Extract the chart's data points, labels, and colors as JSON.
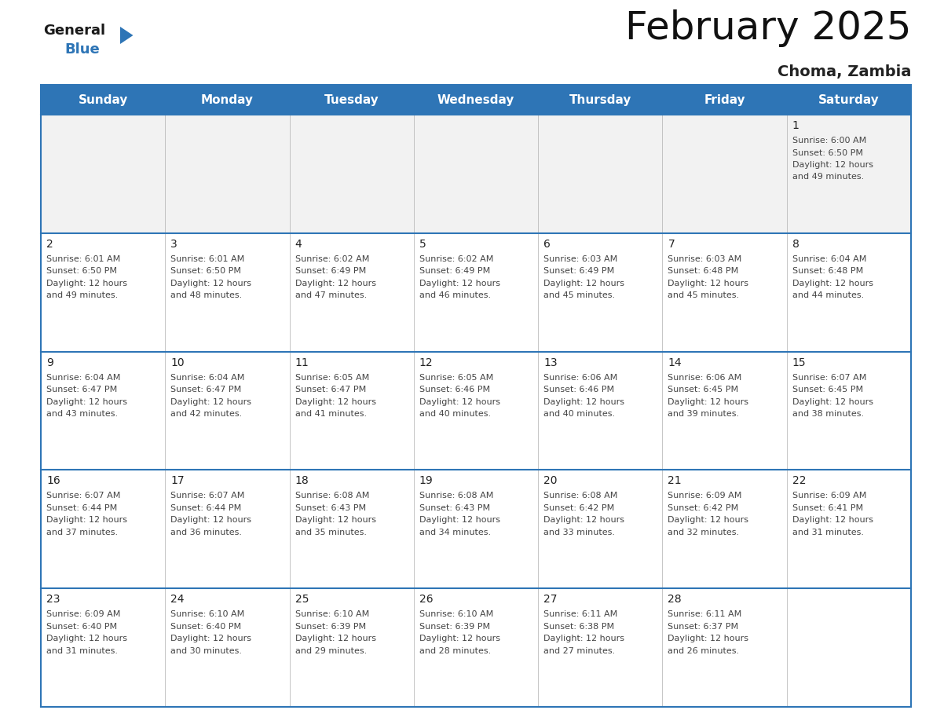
{
  "title": "February 2025",
  "subtitle": "Choma, Zambia",
  "header_color": "#2e75b6",
  "header_text_color": "#ffffff",
  "cell_bg_color": "#ffffff",
  "first_row_bg": "#f2f2f2",
  "border_color": "#2e75b6",
  "separator_color": "#2e75b6",
  "day_num_color": "#222222",
  "info_text_color": "#444444",
  "days_of_week": [
    "Sunday",
    "Monday",
    "Tuesday",
    "Wednesday",
    "Thursday",
    "Friday",
    "Saturday"
  ],
  "calendar_data": [
    [
      null,
      null,
      null,
      null,
      null,
      null,
      {
        "day": 1,
        "sunrise": "6:00 AM",
        "sunset": "6:50 PM",
        "daylight_hours": 12,
        "daylight_minutes": 49
      }
    ],
    [
      {
        "day": 2,
        "sunrise": "6:01 AM",
        "sunset": "6:50 PM",
        "daylight_hours": 12,
        "daylight_minutes": 49
      },
      {
        "day": 3,
        "sunrise": "6:01 AM",
        "sunset": "6:50 PM",
        "daylight_hours": 12,
        "daylight_minutes": 48
      },
      {
        "day": 4,
        "sunrise": "6:02 AM",
        "sunset": "6:49 PM",
        "daylight_hours": 12,
        "daylight_minutes": 47
      },
      {
        "day": 5,
        "sunrise": "6:02 AM",
        "sunset": "6:49 PM",
        "daylight_hours": 12,
        "daylight_minutes": 46
      },
      {
        "day": 6,
        "sunrise": "6:03 AM",
        "sunset": "6:49 PM",
        "daylight_hours": 12,
        "daylight_minutes": 45
      },
      {
        "day": 7,
        "sunrise": "6:03 AM",
        "sunset": "6:48 PM",
        "daylight_hours": 12,
        "daylight_minutes": 45
      },
      {
        "day": 8,
        "sunrise": "6:04 AM",
        "sunset": "6:48 PM",
        "daylight_hours": 12,
        "daylight_minutes": 44
      }
    ],
    [
      {
        "day": 9,
        "sunrise": "6:04 AM",
        "sunset": "6:47 PM",
        "daylight_hours": 12,
        "daylight_minutes": 43
      },
      {
        "day": 10,
        "sunrise": "6:04 AM",
        "sunset": "6:47 PM",
        "daylight_hours": 12,
        "daylight_minutes": 42
      },
      {
        "day": 11,
        "sunrise": "6:05 AM",
        "sunset": "6:47 PM",
        "daylight_hours": 12,
        "daylight_minutes": 41
      },
      {
        "day": 12,
        "sunrise": "6:05 AM",
        "sunset": "6:46 PM",
        "daylight_hours": 12,
        "daylight_minutes": 40
      },
      {
        "day": 13,
        "sunrise": "6:06 AM",
        "sunset": "6:46 PM",
        "daylight_hours": 12,
        "daylight_minutes": 40
      },
      {
        "day": 14,
        "sunrise": "6:06 AM",
        "sunset": "6:45 PM",
        "daylight_hours": 12,
        "daylight_minutes": 39
      },
      {
        "day": 15,
        "sunrise": "6:07 AM",
        "sunset": "6:45 PM",
        "daylight_hours": 12,
        "daylight_minutes": 38
      }
    ],
    [
      {
        "day": 16,
        "sunrise": "6:07 AM",
        "sunset": "6:44 PM",
        "daylight_hours": 12,
        "daylight_minutes": 37
      },
      {
        "day": 17,
        "sunrise": "6:07 AM",
        "sunset": "6:44 PM",
        "daylight_hours": 12,
        "daylight_minutes": 36
      },
      {
        "day": 18,
        "sunrise": "6:08 AM",
        "sunset": "6:43 PM",
        "daylight_hours": 12,
        "daylight_minutes": 35
      },
      {
        "day": 19,
        "sunrise": "6:08 AM",
        "sunset": "6:43 PM",
        "daylight_hours": 12,
        "daylight_minutes": 34
      },
      {
        "day": 20,
        "sunrise": "6:08 AM",
        "sunset": "6:42 PM",
        "daylight_hours": 12,
        "daylight_minutes": 33
      },
      {
        "day": 21,
        "sunrise": "6:09 AM",
        "sunset": "6:42 PM",
        "daylight_hours": 12,
        "daylight_minutes": 32
      },
      {
        "day": 22,
        "sunrise": "6:09 AM",
        "sunset": "6:41 PM",
        "daylight_hours": 12,
        "daylight_minutes": 31
      }
    ],
    [
      {
        "day": 23,
        "sunrise": "6:09 AM",
        "sunset": "6:40 PM",
        "daylight_hours": 12,
        "daylight_minutes": 31
      },
      {
        "day": 24,
        "sunrise": "6:10 AM",
        "sunset": "6:40 PM",
        "daylight_hours": 12,
        "daylight_minutes": 30
      },
      {
        "day": 25,
        "sunrise": "6:10 AM",
        "sunset": "6:39 PM",
        "daylight_hours": 12,
        "daylight_minutes": 29
      },
      {
        "day": 26,
        "sunrise": "6:10 AM",
        "sunset": "6:39 PM",
        "daylight_hours": 12,
        "daylight_minutes": 28
      },
      {
        "day": 27,
        "sunrise": "6:11 AM",
        "sunset": "6:38 PM",
        "daylight_hours": 12,
        "daylight_minutes": 27
      },
      {
        "day": 28,
        "sunrise": "6:11 AM",
        "sunset": "6:37 PM",
        "daylight_hours": 12,
        "daylight_minutes": 26
      },
      null
    ]
  ],
  "figsize": [
    11.88,
    9.18
  ],
  "dpi": 100,
  "title_fontsize": 36,
  "subtitle_fontsize": 14,
  "header_fontsize": 11,
  "day_num_fontsize": 10,
  "info_fontsize": 8
}
